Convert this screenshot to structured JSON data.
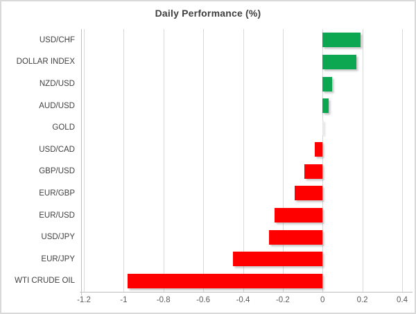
{
  "chart_data": {
    "type": "bar",
    "orientation": "horizontal",
    "title": "Daily Performance (%)",
    "categories": [
      "USD/CHF",
      "DOLLAR INDEX",
      "NZD/USD",
      "AUD/USD",
      "GOLD",
      "USD/CAD",
      "GBP/USD",
      "EUR/GBP",
      "EUR/USD",
      "USD/JPY",
      "EUR/JPY",
      "WTI CRUDE OIL"
    ],
    "values": [
      0.19,
      0.17,
      0.05,
      0.03,
      0.0,
      -0.04,
      -0.09,
      -0.14,
      -0.24,
      -0.27,
      -0.45,
      -0.98
    ],
    "xlabel": "",
    "ylabel": "",
    "xlim": [
      -1.2,
      0.4
    ],
    "x_ticks": [
      -1.2,
      -1,
      -0.8,
      -0.6,
      -0.4,
      -0.2,
      0,
      0.2,
      0.4
    ],
    "x_tick_labels": [
      "-1.2",
      "-1",
      "-0.8",
      "-0.6",
      "-0.4",
      "-0.2",
      "0",
      "0.2",
      "0.4"
    ],
    "grid": "vertical",
    "legend": "none",
    "colors": {
      "positive": "#0CA750",
      "negative": "#FE0000",
      "zero": "#E9E9E9",
      "gridline": "#D9D9D9",
      "axis_line": "#BFBFBF",
      "title_text": "#404040",
      "category_text": "#3F3F3F",
      "tick_text": "#595959",
      "background": "#FFFFFF",
      "border": "#D9D9D9"
    }
  }
}
